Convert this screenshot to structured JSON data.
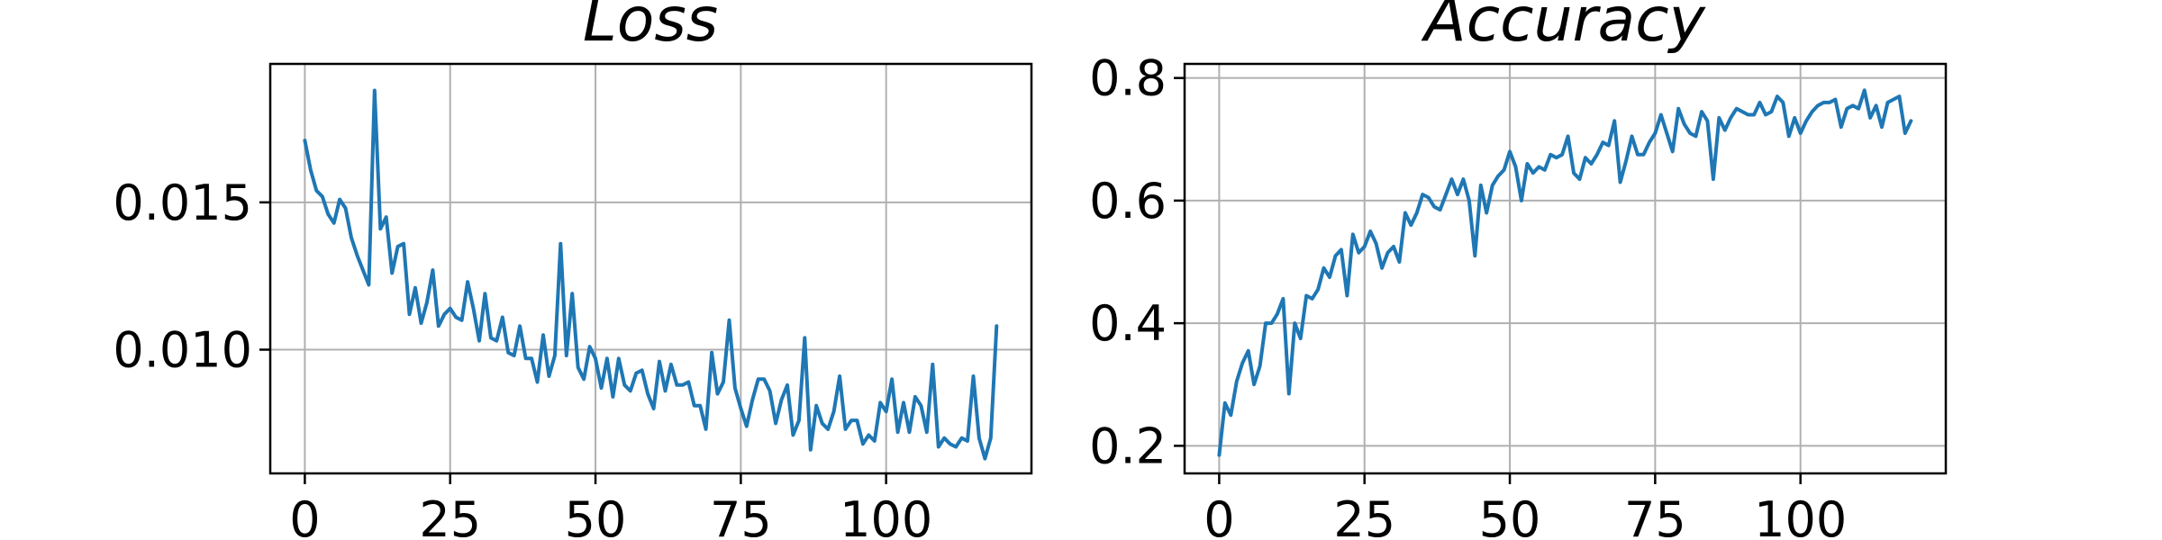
{
  "chart_data": [
    {
      "type": "line",
      "title": "Loss",
      "xlabel": "",
      "ylabel": "",
      "xlim": [
        -5.95,
        125.0
      ],
      "ylim": [
        0.0058,
        0.0197
      ],
      "xticks": [
        0,
        25,
        50,
        75,
        100
      ],
      "xtick_labels": [
        "0",
        "25",
        "50",
        "75",
        "100"
      ],
      "yticks": [
        0.01,
        0.015
      ],
      "ytick_labels": [
        "0.010",
        "0.015"
      ],
      "grid": true,
      "color": "#1f77b4",
      "series": [
        {
          "x": [
            0,
            1,
            2,
            3,
            4,
            5,
            6,
            7,
            8,
            9,
            10,
            11,
            12,
            13,
            14,
            15,
            16,
            17,
            18,
            19,
            20,
            21,
            22,
            23,
            24,
            25,
            26,
            27,
            28,
            29,
            30,
            31,
            32,
            33,
            34,
            35,
            36,
            37,
            38,
            39,
            40,
            41,
            42,
            43,
            44,
            45,
            46,
            47,
            48,
            49,
            50,
            51,
            52,
            53,
            54,
            55,
            56,
            57,
            58,
            59,
            60,
            61,
            62,
            63,
            64,
            65,
            66,
            67,
            68,
            69,
            70,
            71,
            72,
            73,
            74,
            75,
            76,
            77,
            78,
            79,
            80,
            81,
            82,
            83,
            84,
            85,
            86,
            87,
            88,
            89,
            90,
            91,
            92,
            93,
            94,
            95,
            96,
            97,
            98,
            99,
            100,
            101,
            102,
            103,
            104,
            105,
            106,
            107,
            108,
            109,
            110,
            111,
            112,
            113,
            114,
            115,
            116,
            117,
            118,
            119
          ],
          "values": [
            0.0171,
            0.0161,
            0.0154,
            0.0152,
            0.0146,
            0.0143,
            0.0151,
            0.0148,
            0.0138,
            0.0132,
            0.0127,
            0.0122,
            0.0188,
            0.0141,
            0.0145,
            0.0126,
            0.0135,
            0.0136,
            0.0112,
            0.0121,
            0.0109,
            0.0116,
            0.0127,
            0.0108,
            0.0112,
            0.0114,
            0.0111,
            0.011,
            0.0123,
            0.0114,
            0.0103,
            0.0119,
            0.0104,
            0.0103,
            0.0111,
            0.0099,
            0.0098,
            0.0108,
            0.0097,
            0.0097,
            0.0089,
            0.0105,
            0.0091,
            0.0098,
            0.0136,
            0.0098,
            0.0119,
            0.0094,
            0.009,
            0.0101,
            0.0097,
            0.0087,
            0.0097,
            0.0084,
            0.0097,
            0.0088,
            0.0086,
            0.0092,
            0.0093,
            0.0085,
            0.008,
            0.0096,
            0.0086,
            0.0095,
            0.0088,
            0.0088,
            0.0089,
            0.0081,
            0.0081,
            0.0073,
            0.0099,
            0.0085,
            0.0089,
            0.011,
            0.0087,
            0.008,
            0.0074,
            0.0083,
            0.009,
            0.009,
            0.0086,
            0.0075,
            0.0083,
            0.0088,
            0.0071,
            0.0076,
            0.0104,
            0.0066,
            0.0081,
            0.0075,
            0.0073,
            0.0079,
            0.0091,
            0.0073,
            0.0076,
            0.0076,
            0.0068,
            0.0071,
            0.0069,
            0.0082,
            0.0079,
            0.009,
            0.0072,
            0.0082,
            0.0072,
            0.0084,
            0.0081,
            0.0072,
            0.0095,
            0.0067,
            0.007,
            0.0068,
            0.0067,
            0.007,
            0.0069,
            0.0091,
            0.007,
            0.0063,
            0.007,
            0.0108
          ]
        }
      ]
    },
    {
      "type": "line",
      "title": "Accuracy",
      "xlabel": "",
      "ylabel": "",
      "xlim": [
        -5.95,
        125.0
      ],
      "ylim": [
        0.155,
        0.823
      ],
      "xticks": [
        0,
        25,
        50,
        75,
        100
      ],
      "xtick_labels": [
        "0",
        "25",
        "50",
        "75",
        "100"
      ],
      "yticks": [
        0.2,
        0.4,
        0.6,
        0.8
      ],
      "ytick_labels": [
        "0.2",
        "0.4",
        "0.6",
        "0.8"
      ],
      "grid": true,
      "color": "#1f77b4",
      "series": [
        {
          "x": [
            0,
            1,
            2,
            3,
            4,
            5,
            6,
            7,
            8,
            9,
            10,
            11,
            12,
            13,
            14,
            15,
            16,
            17,
            18,
            19,
            20,
            21,
            22,
            23,
            24,
            25,
            26,
            27,
            28,
            29,
            30,
            31,
            32,
            33,
            34,
            35,
            36,
            37,
            38,
            39,
            40,
            41,
            42,
            43,
            44,
            45,
            46,
            47,
            48,
            49,
            50,
            51,
            52,
            53,
            54,
            55,
            56,
            57,
            58,
            59,
            60,
            61,
            62,
            63,
            64,
            65,
            66,
            67,
            68,
            69,
            70,
            71,
            72,
            73,
            74,
            75,
            76,
            77,
            78,
            79,
            80,
            81,
            82,
            83,
            84,
            85,
            86,
            87,
            88,
            89,
            90,
            91,
            92,
            93,
            94,
            95,
            96,
            97,
            98,
            99,
            100,
            101,
            102,
            103,
            104,
            105,
            106,
            107,
            108,
            109,
            110,
            111,
            112,
            113,
            114,
            115,
            116,
            117,
            118,
            119
          ],
          "values": [
            0.185,
            0.27,
            0.25,
            0.305,
            0.335,
            0.355,
            0.3,
            0.33,
            0.4,
            0.4,
            0.415,
            0.44,
            0.285,
            0.4,
            0.375,
            0.445,
            0.44,
            0.455,
            0.49,
            0.475,
            0.51,
            0.52,
            0.445,
            0.545,
            0.515,
            0.525,
            0.55,
            0.53,
            0.49,
            0.515,
            0.525,
            0.5,
            0.58,
            0.56,
            0.58,
            0.61,
            0.605,
            0.59,
            0.585,
            0.61,
            0.635,
            0.61,
            0.635,
            0.6,
            0.51,
            0.625,
            0.58,
            0.625,
            0.64,
            0.65,
            0.68,
            0.655,
            0.6,
            0.66,
            0.645,
            0.655,
            0.65,
            0.675,
            0.67,
            0.675,
            0.705,
            0.645,
            0.635,
            0.67,
            0.66,
            0.675,
            0.695,
            0.69,
            0.73,
            0.63,
            0.665,
            0.705,
            0.675,
            0.675,
            0.695,
            0.71,
            0.74,
            0.71,
            0.68,
            0.75,
            0.725,
            0.71,
            0.705,
            0.745,
            0.73,
            0.635,
            0.735,
            0.715,
            0.735,
            0.75,
            0.745,
            0.74,
            0.74,
            0.76,
            0.74,
            0.745,
            0.77,
            0.76,
            0.705,
            0.735,
            0.71,
            0.73,
            0.745,
            0.755,
            0.76,
            0.76,
            0.765,
            0.72,
            0.75,
            0.755,
            0.75,
            0.78,
            0.735,
            0.755,
            0.72,
            0.76,
            0.765,
            0.77,
            0.71,
            0.73
          ]
        }
      ]
    }
  ]
}
